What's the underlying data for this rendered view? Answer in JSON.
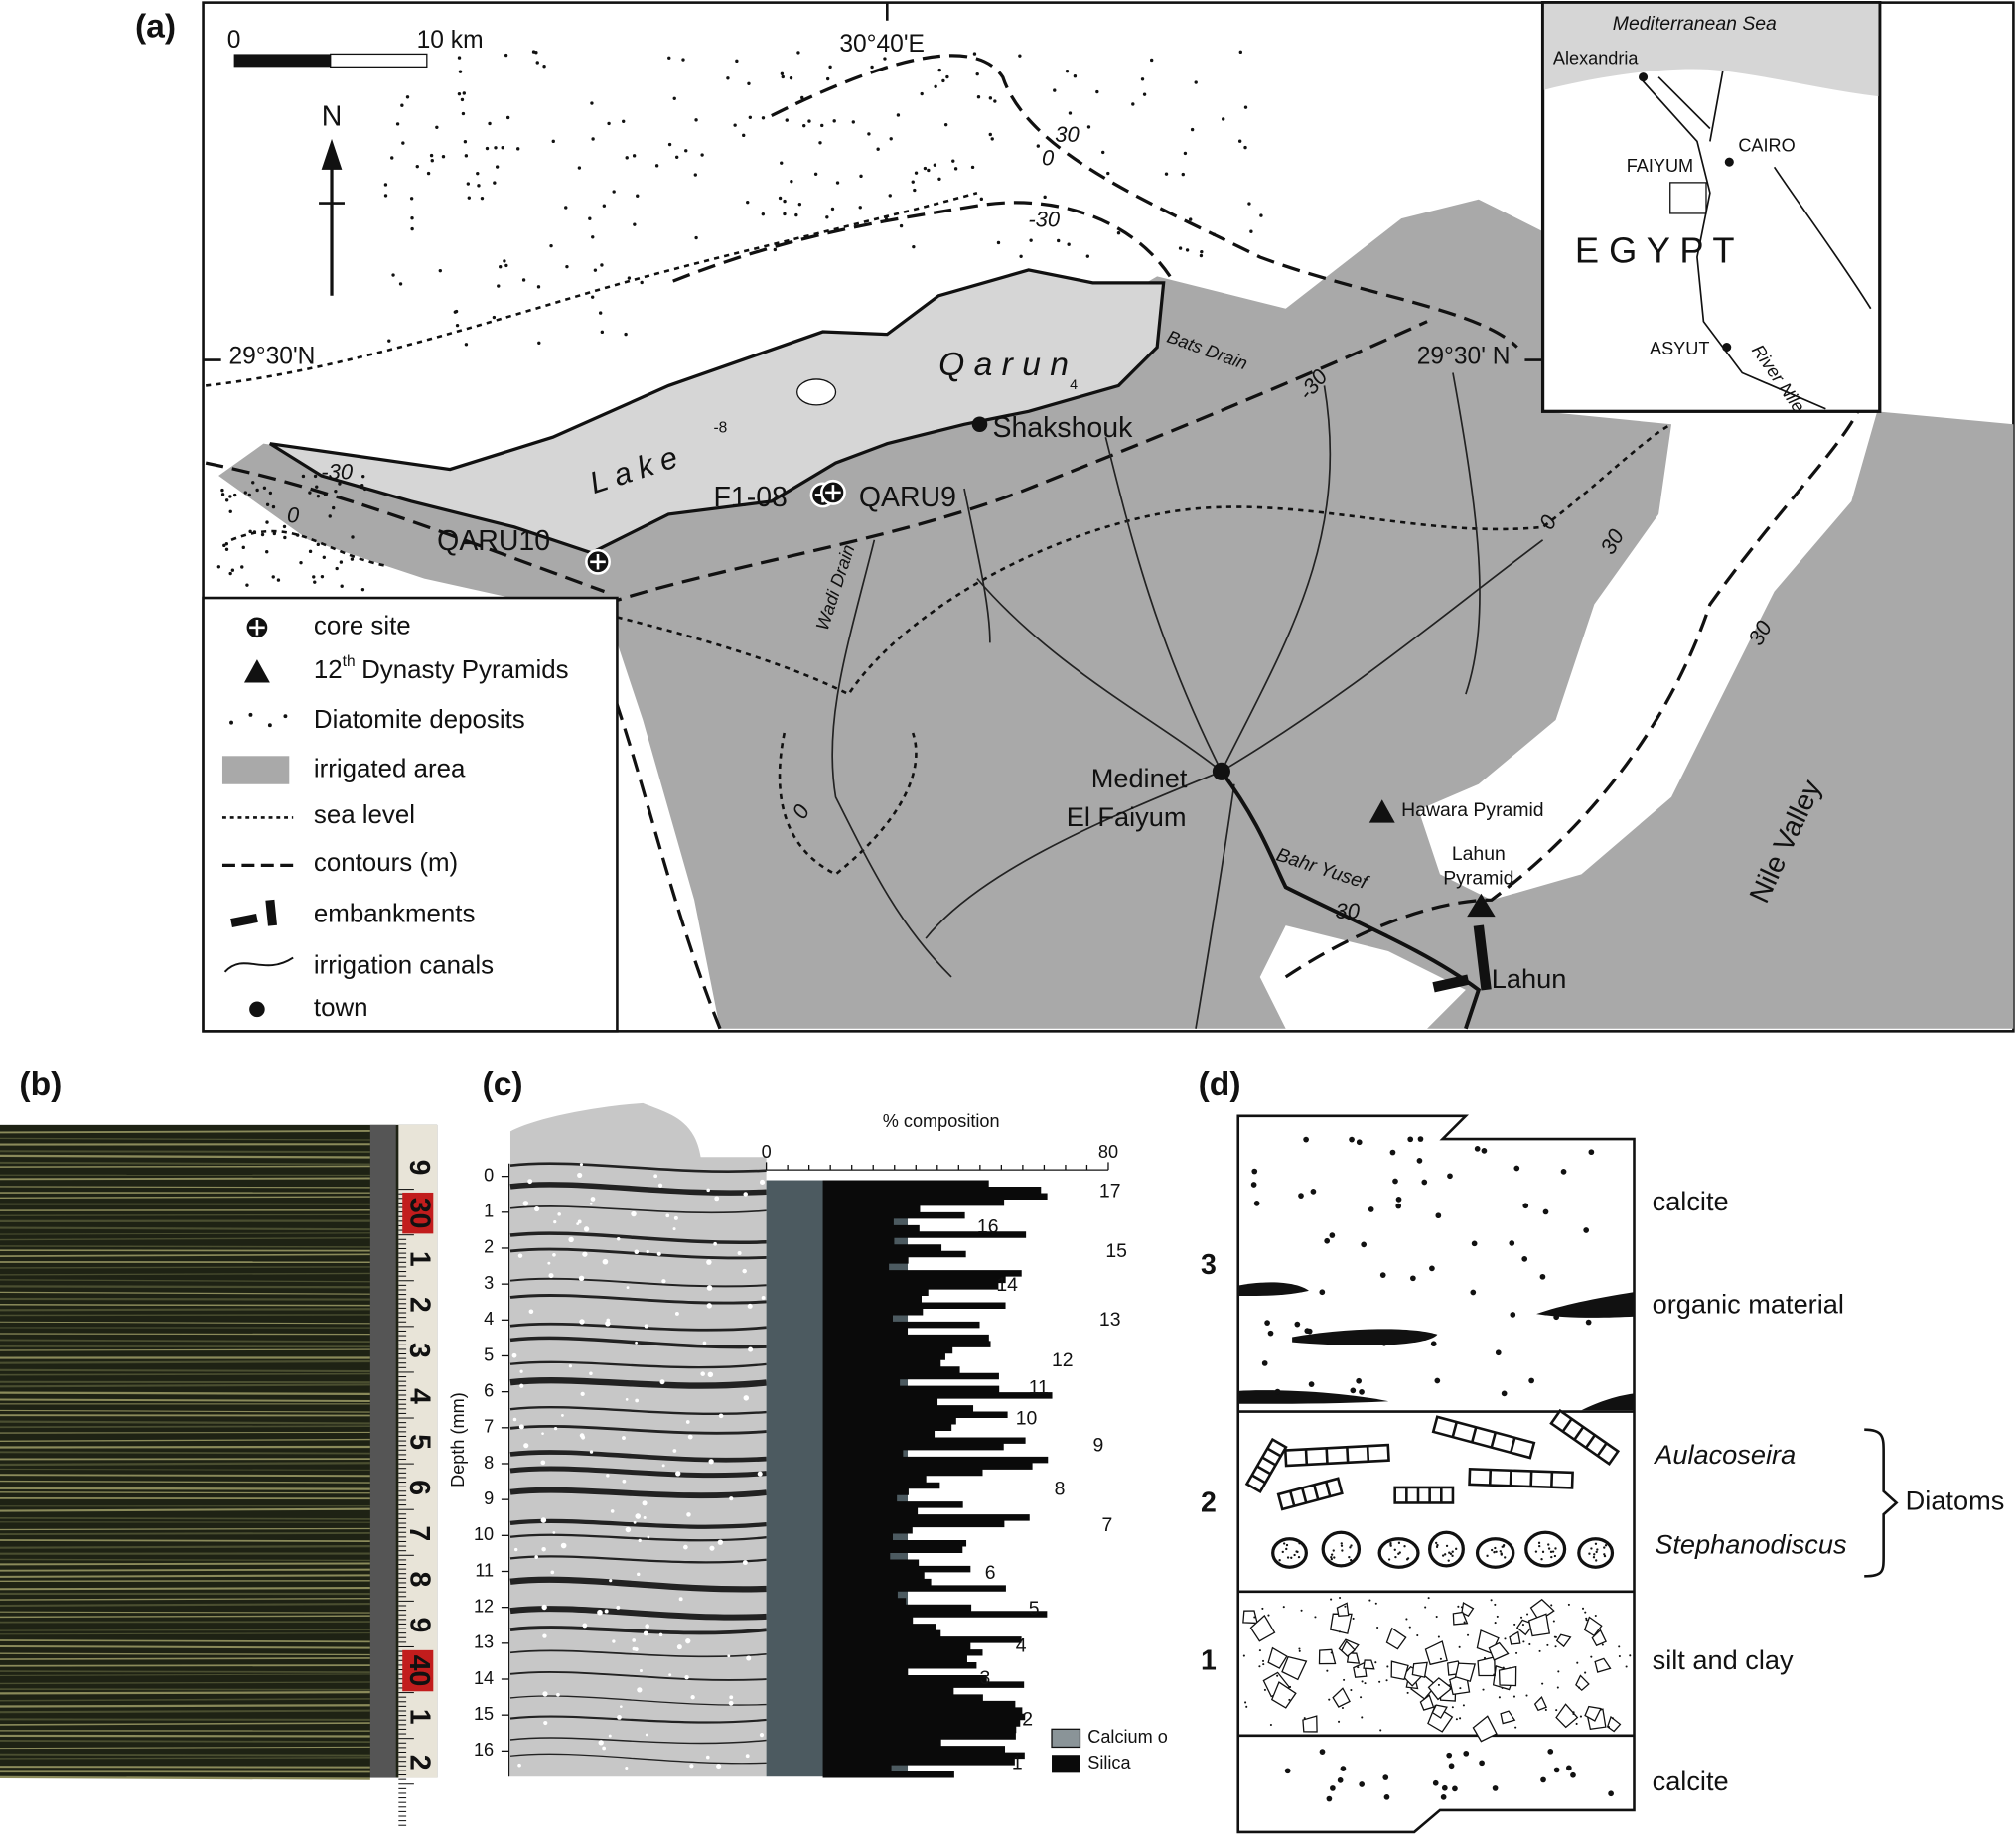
{
  "panels": {
    "a": {
      "label": "(a)",
      "scale_bar": {
        "start": "0",
        "end": "10 km"
      },
      "north": "N",
      "coordinates": {
        "top": "30°40'E",
        "left": "29°30'N",
        "right": "29°30' N"
      },
      "inset": {
        "sea": "Mediterranean Sea",
        "cities": [
          "Alexandria",
          "CAIRO",
          "FAIYUM",
          "ASYUT"
        ],
        "country": "E G Y P T",
        "river": "River Nile"
      },
      "lake": {
        "word1": "Lake",
        "word2": "Q a r u n",
        "depths": [
          "-8",
          "4"
        ]
      },
      "sites": [
        "Shakshouk",
        "F1-08",
        "QARU9",
        "QARU10"
      ],
      "drains": [
        "Bats Drain",
        "Wadi Drain",
        "Bahr Yusef"
      ],
      "towns": {
        "medinet_line1": "Medinet",
        "medinet_line2": "El Faiyum",
        "hawara": "Hawara Pyramid",
        "lahun_pyr_line1": "Lahun",
        "lahun_pyr_line2": "Pyramid",
        "lahun": "Lahun",
        "valley": "Nile Valley"
      },
      "contour_labels": [
        "30",
        "0",
        "-30",
        "-30",
        "-30",
        "0",
        "0",
        "30",
        "30",
        "0",
        "30"
      ],
      "legend": {
        "core_site": "core site",
        "pyramids": {
          "number": "12",
          "suffix": "th",
          "text": "Dynasty Pyramids"
        },
        "diatomite": "Diatomite deposits",
        "irrigated": "irrigated area",
        "sea_level": "sea level",
        "contours": "contours (m)",
        "embankments": "embankments",
        "canals": "irrigation canals",
        "town": "town"
      }
    },
    "b": {
      "label": "(b)",
      "ruler": [
        "9",
        "30",
        "1",
        "2",
        "3",
        "4",
        "5",
        "6",
        "7",
        "8",
        "9",
        "40",
        "1",
        "2"
      ]
    },
    "c": {
      "label": "(c)",
      "x_label": "% composition",
      "xticks": [
        0,
        80
      ],
      "y_label": "Depth (mm)",
      "yticks": [
        0,
        1,
        2,
        3,
        4,
        5,
        6,
        7,
        8,
        9,
        10,
        11,
        12,
        13,
        14,
        15,
        16
      ],
      "layers": [
        "17",
        "16",
        "15",
        "14",
        "13",
        "12",
        "11",
        "10",
        "9",
        "8",
        "7",
        "6",
        "5",
        "4",
        "3",
        "2",
        "1"
      ],
      "legend": [
        "Calcium o",
        "Silica"
      ]
    },
    "d": {
      "label": "(d)",
      "units": [
        "3",
        "2",
        "1"
      ],
      "layers": [
        "calcite",
        "organic material",
        "Aulacoseira",
        "Stephanodiscus",
        "silt and clay",
        "calcite"
      ],
      "group": "Diatoms"
    }
  }
}
